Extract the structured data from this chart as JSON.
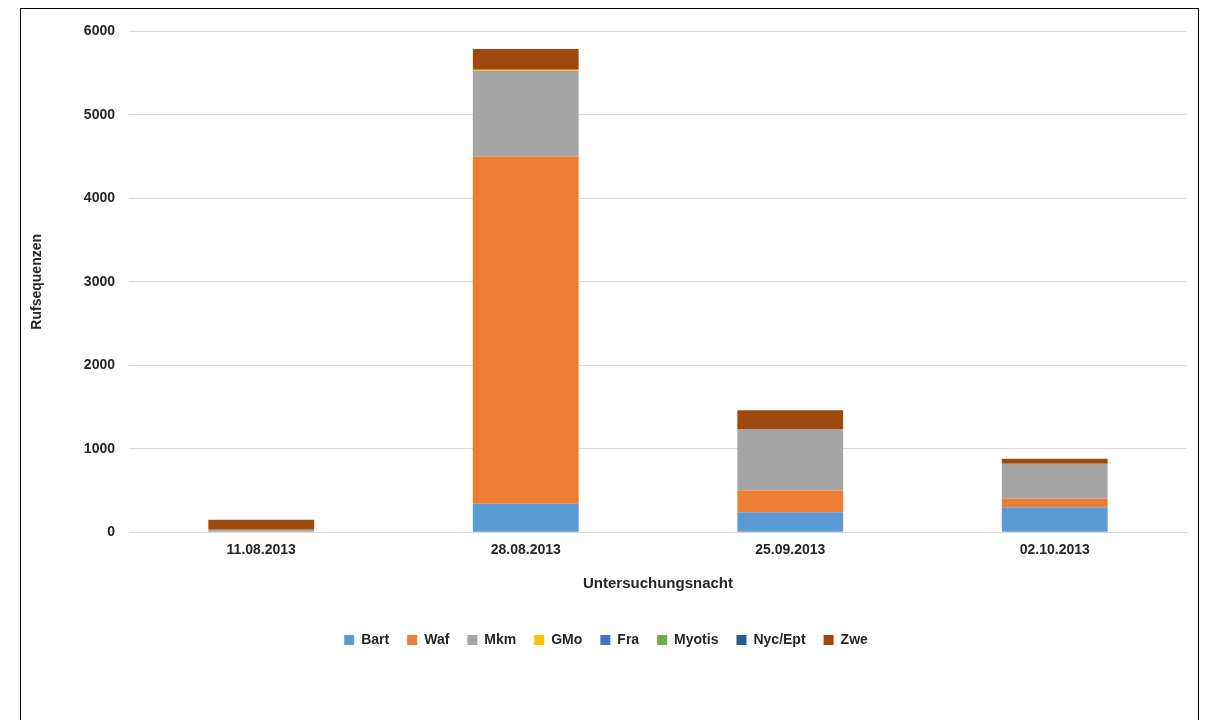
{
  "chart_data": {
    "type": "bar",
    "stacked": true,
    "xlabel": "Untersuchungsnacht",
    "ylabel": "Rufsequenzen",
    "categories": [
      "11.08.2013",
      "28.08.2013",
      "25.09.2013",
      "02.10.2013"
    ],
    "series": [
      {
        "name": "Bart",
        "color": "#5b9bd5",
        "values": [
          0,
          340,
          240,
          300
        ]
      },
      {
        "name": "Waf",
        "color": "#ed7d31",
        "values": [
          0,
          4160,
          260,
          100
        ]
      },
      {
        "name": "Mkm",
        "color": "#a5a5a5",
        "values": [
          30,
          1030,
          730,
          420
        ]
      },
      {
        "name": "GMo",
        "color": "#ffc000",
        "values": [
          0,
          10,
          0,
          0
        ]
      },
      {
        "name": "Fra",
        "color": "#4472c4",
        "values": [
          0,
          0,
          0,
          0
        ]
      },
      {
        "name": "Myotis",
        "color": "#70ad47",
        "values": [
          0,
          0,
          0,
          0
        ]
      },
      {
        "name": "Nyc/Ept",
        "color": "#255e91",
        "values": [
          0,
          0,
          0,
          0
        ]
      },
      {
        "name": "Zwe",
        "color": "#9e480e",
        "values": [
          120,
          250,
          230,
          60
        ]
      }
    ],
    "ylim": [
      0,
      6000
    ],
    "yticks": [
      0,
      1000,
      2000,
      3000,
      4000,
      5000,
      6000
    ],
    "grid": "y",
    "legend": "bottom"
  }
}
